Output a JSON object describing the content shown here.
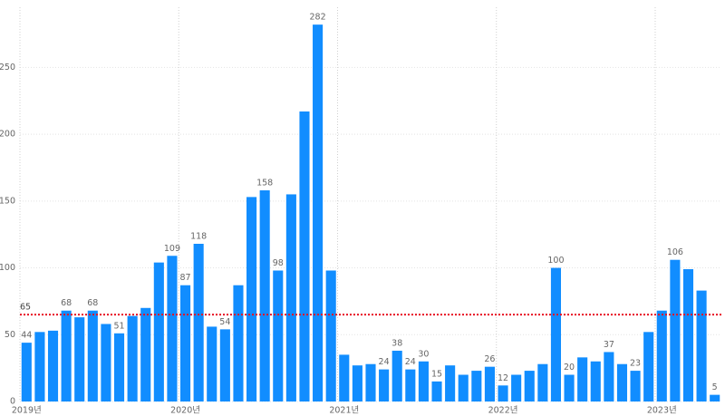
{
  "chart_data": {
    "type": "bar",
    "categories": [
      "2019년",
      null,
      null,
      null,
      null,
      null,
      null,
      null,
      null,
      null,
      null,
      null,
      "2020년",
      null,
      null,
      null,
      null,
      null,
      null,
      null,
      null,
      null,
      null,
      null,
      "2021년",
      null,
      null,
      null,
      null,
      null,
      null,
      null,
      null,
      null,
      null,
      null,
      "2022년",
      null,
      null,
      null,
      null,
      null,
      null,
      null,
      null,
      null,
      null,
      null,
      "2023년",
      null,
      null,
      null,
      null
    ],
    "values": [
      44,
      52,
      53,
      68,
      63,
      68,
      58,
      51,
      64,
      70,
      104,
      109,
      87,
      118,
      56,
      54,
      87,
      153,
      158,
      98,
      155,
      217,
      282,
      98,
      35,
      27,
      28,
      24,
      38,
      24,
      30,
      15,
      27,
      20,
      23,
      26,
      12,
      20,
      23,
      28,
      100,
      20,
      33,
      30,
      37,
      28,
      23,
      52,
      68,
      106,
      99,
      83,
      5
    ],
    "value_labels": [
      44,
      null,
      null,
      68,
      null,
      68,
      null,
      51,
      null,
      null,
      null,
      109,
      87,
      118,
      null,
      54,
      null,
      null,
      158,
      98,
      null,
      null,
      282,
      null,
      null,
      null,
      null,
      24,
      38,
      24,
      30,
      15,
      null,
      null,
      null,
      26,
      12,
      null,
      null,
      null,
      100,
      20,
      null,
      null,
      37,
      null,
      23,
      null,
      null,
      106,
      null,
      null,
      5
    ],
    "color": "#118dff",
    "ylim": [
      0,
      295
    ],
    "yticks": [
      0,
      50,
      100,
      150,
      200,
      250
    ],
    "grid": true,
    "reference_line": {
      "value": 65,
      "color": "#e81123"
    }
  }
}
